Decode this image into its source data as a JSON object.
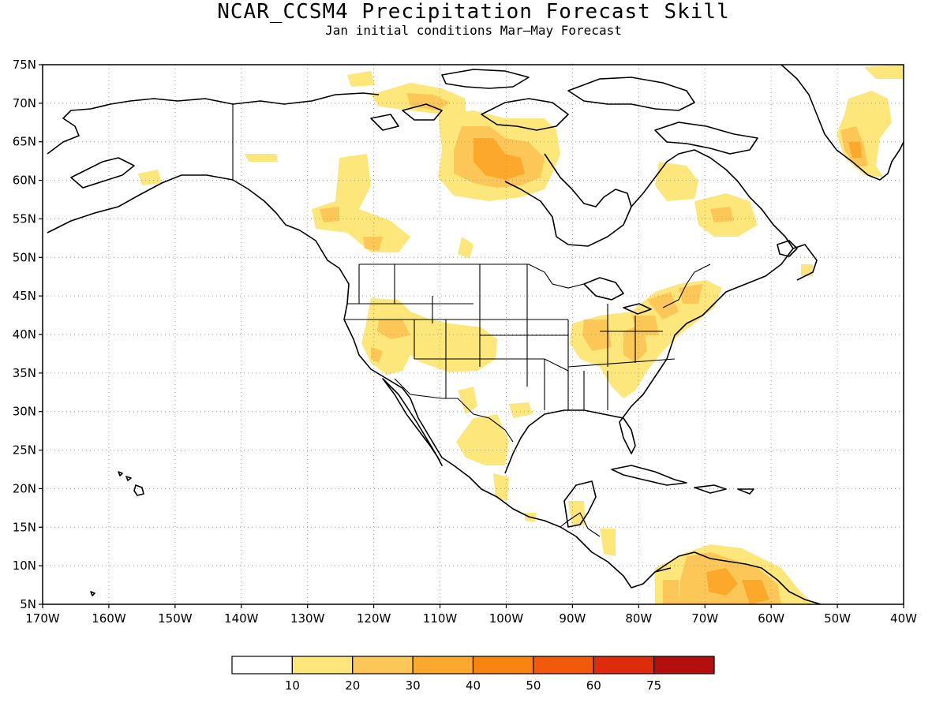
{
  "title": "NCAR_CCSM4 Precipitation Forecast Skill",
  "subtitle": "Jan initial conditions  Mar—May Forecast",
  "map": {
    "lon_range": [
      -170,
      -40
    ],
    "lat_range": [
      5,
      75
    ],
    "lat_ticks": [
      "5N",
      "10N",
      "15N",
      "20N",
      "25N",
      "30N",
      "35N",
      "40N",
      "45N",
      "50N",
      "55N",
      "60N",
      "65N",
      "70N",
      "75N"
    ],
    "lon_ticks": [
      "170W",
      "160W",
      "150W",
      "140W",
      "130W",
      "120W",
      "110W",
      "100W",
      "90W",
      "80W",
      "70W",
      "60W",
      "50W",
      "40W"
    ],
    "grid": true
  },
  "colorbar": {
    "labels": [
      "10",
      "20",
      "30",
      "40",
      "50",
      "60",
      "75"
    ],
    "colors": [
      "#ffffff",
      "#fde67a",
      "#fdc758",
      "#fca82a",
      "#f7850d",
      "#f15a0a",
      "#de2b0c",
      "#b40e0e"
    ]
  }
}
